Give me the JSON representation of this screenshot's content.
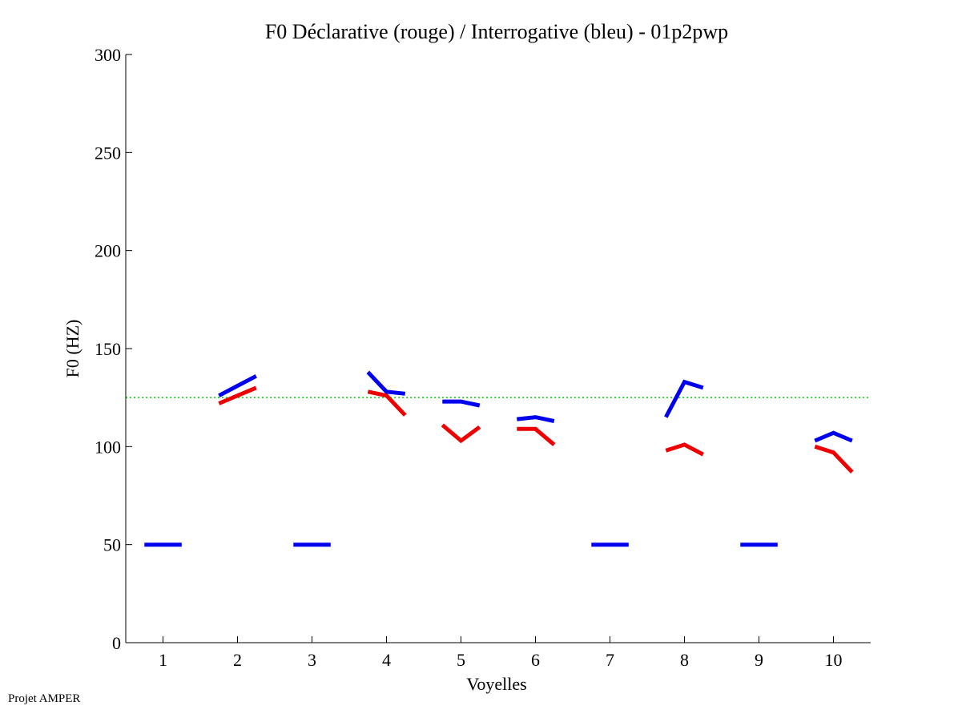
{
  "chart_data": {
    "type": "line",
    "title": "F0 Déclarative (rouge) / Interrogative (bleu) - 01p2pwp",
    "xlabel": "Voyelles",
    "ylabel": "F0 (HZ)",
    "xlim": [
      0.5,
      10.5
    ],
    "ylim": [
      0,
      300
    ],
    "x_ticks": [
      1,
      2,
      3,
      4,
      5,
      6,
      7,
      8,
      9,
      10
    ],
    "y_ticks": [
      0,
      50,
      100,
      150,
      200,
      250,
      300
    ],
    "reference_line": {
      "y": 125,
      "color": "#00cc00",
      "style": "dotted"
    },
    "series": [
      {
        "name": "Déclarative",
        "color": "#ee0000",
        "segments": [
          {
            "vowel": 2,
            "points": [
              [
                1.75,
                122
              ],
              [
                2.0,
                126
              ],
              [
                2.25,
                130
              ]
            ]
          },
          {
            "vowel": 4,
            "points": [
              [
                3.75,
                128
              ],
              [
                4.0,
                126
              ],
              [
                4.25,
                116
              ]
            ]
          },
          {
            "vowel": 5,
            "points": [
              [
                4.75,
                111
              ],
              [
                5.0,
                103
              ],
              [
                5.25,
                110
              ]
            ]
          },
          {
            "vowel": 6,
            "points": [
              [
                5.75,
                109
              ],
              [
                6.0,
                109
              ],
              [
                6.25,
                101
              ]
            ]
          },
          {
            "vowel": 8,
            "points": [
              [
                7.75,
                98
              ],
              [
                8.0,
                101
              ],
              [
                8.25,
                96
              ]
            ]
          },
          {
            "vowel": 10,
            "points": [
              [
                9.75,
                100
              ],
              [
                10.0,
                97
              ],
              [
                10.25,
                87
              ]
            ]
          }
        ]
      },
      {
        "name": "Interrogative",
        "color": "#0000ee",
        "segments": [
          {
            "vowel": 1,
            "points": [
              [
                0.75,
                50
              ],
              [
                1.0,
                50
              ],
              [
                1.25,
                50
              ]
            ]
          },
          {
            "vowel": 2,
            "points": [
              [
                1.75,
                126
              ],
              [
                2.0,
                131
              ],
              [
                2.25,
                136
              ]
            ]
          },
          {
            "vowel": 3,
            "points": [
              [
                2.75,
                50
              ],
              [
                3.0,
                50
              ],
              [
                3.25,
                50
              ]
            ]
          },
          {
            "vowel": 4,
            "points": [
              [
                3.75,
                138
              ],
              [
                4.0,
                128
              ],
              [
                4.25,
                127
              ]
            ]
          },
          {
            "vowel": 5,
            "points": [
              [
                4.75,
                123
              ],
              [
                5.0,
                123
              ],
              [
                5.25,
                121
              ]
            ]
          },
          {
            "vowel": 6,
            "points": [
              [
                5.75,
                114
              ],
              [
                6.0,
                115
              ],
              [
                6.25,
                113
              ]
            ]
          },
          {
            "vowel": 7,
            "points": [
              [
                6.75,
                50
              ],
              [
                7.0,
                50
              ],
              [
                7.25,
                50
              ]
            ]
          },
          {
            "vowel": 8,
            "points": [
              [
                7.75,
                115
              ],
              [
                8.0,
                133
              ],
              [
                8.25,
                130
              ]
            ]
          },
          {
            "vowel": 9,
            "points": [
              [
                8.75,
                50
              ],
              [
                9.0,
                50
              ],
              [
                9.25,
                50
              ]
            ]
          },
          {
            "vowel": 10,
            "points": [
              [
                9.75,
                103
              ],
              [
                10.0,
                107
              ],
              [
                10.25,
                103
              ]
            ]
          }
        ]
      }
    ]
  },
  "footer": {
    "text": "Projet AMPER"
  }
}
